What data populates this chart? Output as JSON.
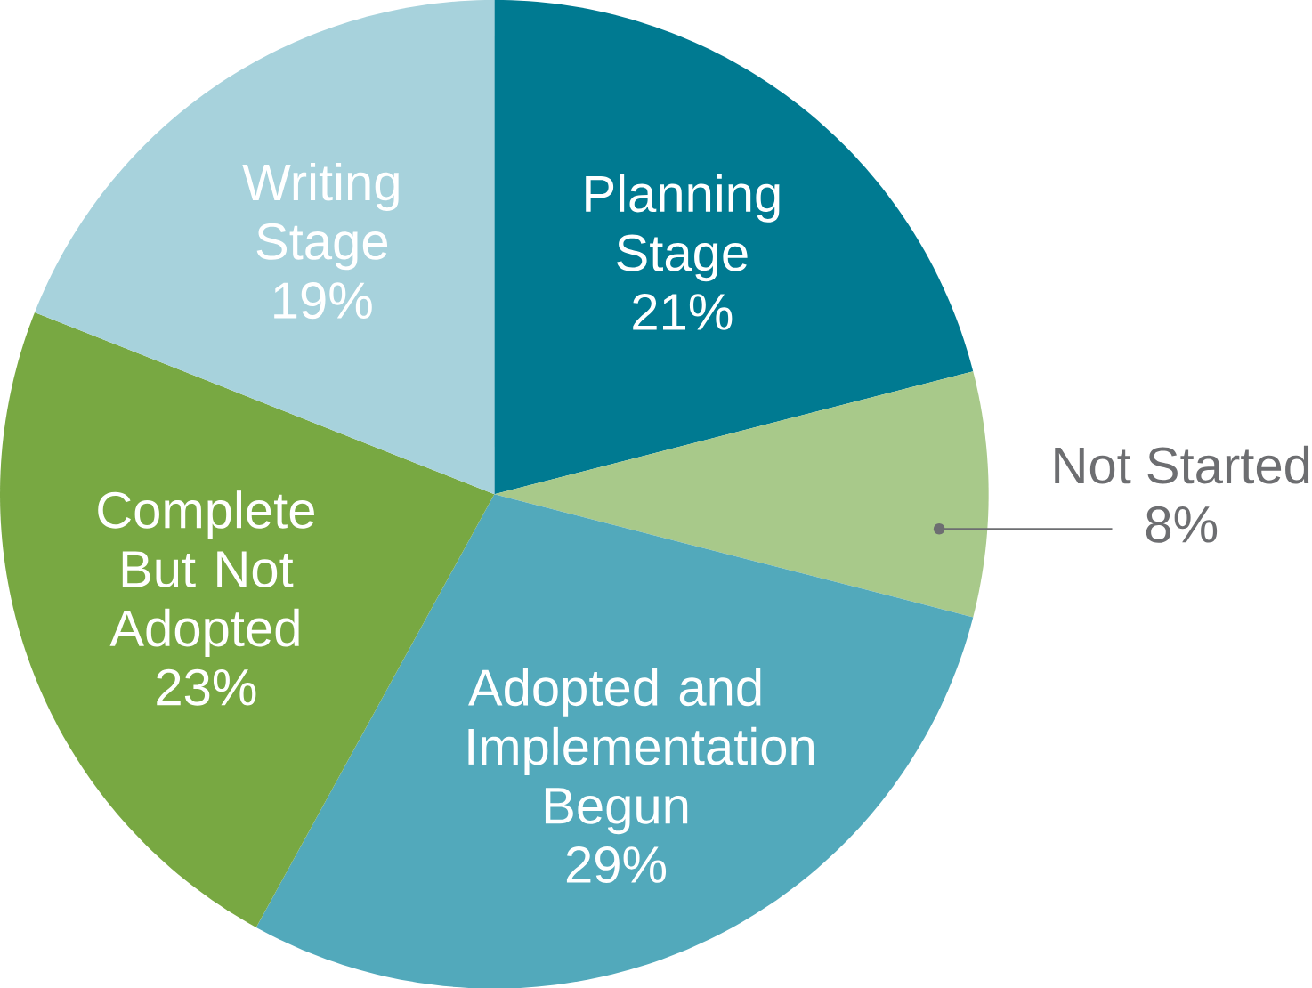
{
  "chart_data": {
    "type": "pie",
    "categories": [
      "Planning Stage",
      "Not Started",
      "Adopted and Implementation Begun",
      "Complete But Not Adopted",
      "Writing Stage"
    ],
    "values": [
      21,
      8,
      29,
      23,
      19
    ],
    "value_labels": [
      "21%",
      "8%",
      "29%",
      "23%",
      "19%"
    ],
    "colors": [
      "#007a91",
      "#a8c98a",
      "#52a9bb",
      "#78a842",
      "#a7d2dc"
    ]
  }
}
